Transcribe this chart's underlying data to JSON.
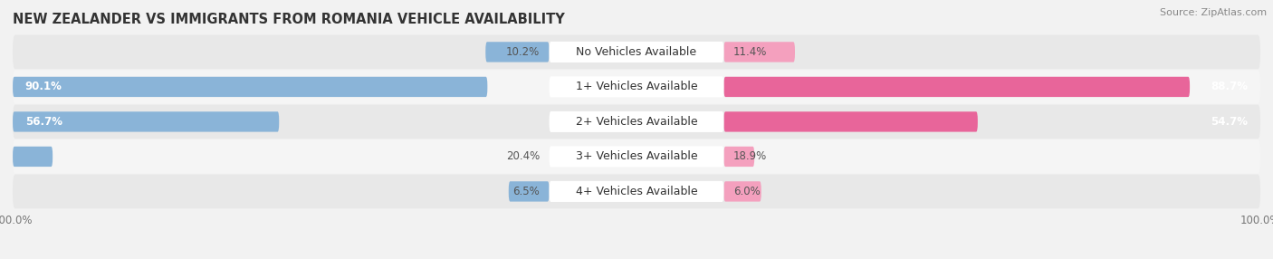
{
  "title": "NEW ZEALANDER VS IMMIGRANTS FROM ROMANIA VEHICLE AVAILABILITY",
  "source": "Source: ZipAtlas.com",
  "categories": [
    "No Vehicles Available",
    "1+ Vehicles Available",
    "2+ Vehicles Available",
    "3+ Vehicles Available",
    "4+ Vehicles Available"
  ],
  "nz_values": [
    10.2,
    90.1,
    56.7,
    20.4,
    6.5
  ],
  "rom_values": [
    11.4,
    88.7,
    54.7,
    18.9,
    6.0
  ],
  "nz_color": "#8ab4d8",
  "rom_color_large": "#e8659a",
  "rom_color_small": "#f4a0be",
  "bar_height": 0.58,
  "background_color": "#f2f2f2",
  "row_bg_colors": [
    "#e8e8e8",
    "#f5f5f5"
  ],
  "label_nz": "New Zealander",
  "label_rom": "Immigrants from Romania",
  "title_fontsize": 10.5,
  "source_fontsize": 8,
  "tick_fontsize": 8.5,
  "label_fontsize": 8.5,
  "cat_fontsize": 9,
  "nz_label_threshold": 30,
  "rom_label_threshold": 30
}
